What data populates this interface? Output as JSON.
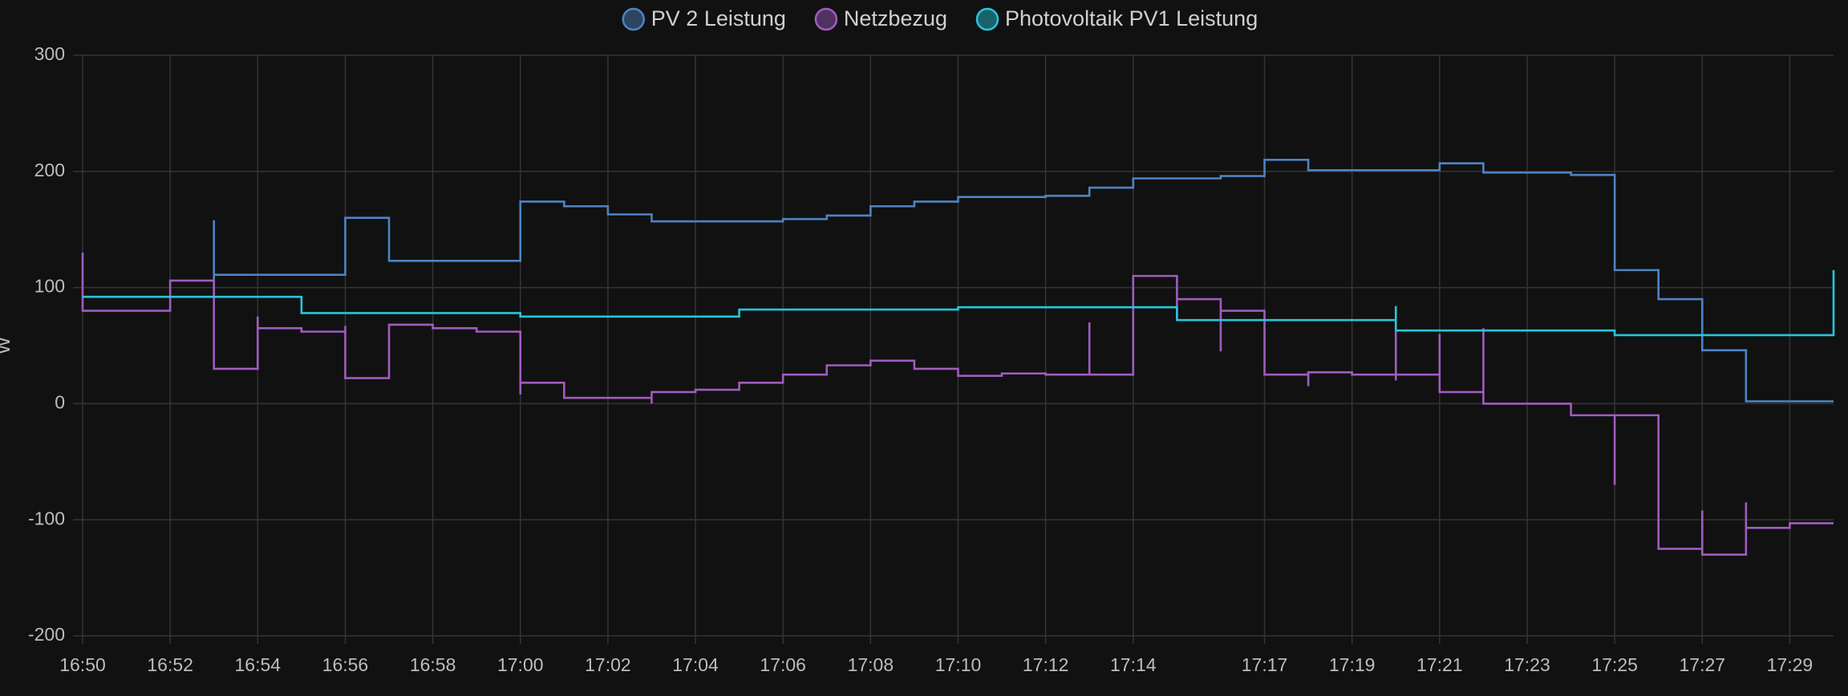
{
  "chart_data": {
    "type": "step-line",
    "y_label": "W",
    "xlim": [
      "16:50",
      "17:30"
    ],
    "xticks": [
      "16:50",
      "16:52",
      "16:54",
      "16:56",
      "16:58",
      "17:00",
      "17:02",
      "17:04",
      "17:06",
      "17:08",
      "17:10",
      "17:12",
      "17:14",
      "17:17",
      "17:19",
      "17:21",
      "17:23",
      "17:25",
      "17:27",
      "17:29"
    ],
    "ylim": [
      -200,
      300
    ],
    "yticks": [
      -200,
      -100,
      0,
      100,
      200,
      300
    ],
    "grid": true,
    "legend": "top",
    "series": [
      {
        "name": "PV 2 Leistung",
        "color": "#4d84c4",
        "x": [
          "16:50",
          "16:53",
          "16:53",
          "16:56",
          "16:57",
          "17:00",
          "17:01",
          "17:02",
          "17:03",
          "17:05",
          "17:06",
          "17:07",
          "17:08",
          "17:09",
          "17:10",
          "17:12",
          "17:13",
          "17:14",
          "17:16",
          "17:17",
          "17:18",
          "17:20",
          "17:21",
          "17:22",
          "17:24",
          "17:25",
          "17:25",
          "17:26",
          "17:26",
          "17:27",
          "17:28",
          "17:28",
          "17:30"
        ],
        "values": [
          92,
          158,
          111,
          160,
          123,
          174,
          170,
          163,
          157,
          157,
          159,
          162,
          170,
          174,
          178,
          179,
          186,
          194,
          196,
          210,
          201,
          201,
          207,
          199,
          197,
          145,
          115,
          101,
          90,
          46,
          43,
          2,
          2
        ]
      },
      {
        "name": "Netzbezug",
        "color": "#a05cbf",
        "x": [
          "16:50",
          "16:50",
          "16:52",
          "16:53",
          "16:54",
          "16:54",
          "16:55",
          "16:56",
          "16:56",
          "16:57",
          "16:57",
          "16:58",
          "16:59",
          "17:00",
          "17:00",
          "17:01",
          "17:02",
          "17:03",
          "17:03",
          "17:04",
          "17:05",
          "17:06",
          "17:07",
          "17:08",
          "17:09",
          "17:10",
          "17:11",
          "17:12",
          "17:13",
          "17:13",
          "17:13",
          "17:14",
          "17:14",
          "17:15",
          "17:15",
          "17:16",
          "17:16",
          "17:17",
          "17:18",
          "17:18",
          "17:19",
          "17:20",
          "17:20",
          "17:20",
          "17:21",
          "17:21",
          "17:22",
          "17:22",
          "17:23",
          "17:24",
          "17:25",
          "17:25",
          "17:25",
          "17:26",
          "17:26",
          "17:27",
          "17:27",
          "17:28",
          "17:28",
          "17:29",
          "17:30"
        ],
        "values": [
          130,
          80,
          106,
          30,
          75,
          65,
          62,
          67,
          22,
          55,
          68,
          65,
          62,
          8,
          18,
          5,
          5,
          0,
          10,
          12,
          18,
          25,
          33,
          37,
          30,
          24,
          26,
          25,
          45,
          70,
          25,
          60,
          110,
          75,
          90,
          45,
          80,
          25,
          15,
          27,
          25,
          20,
          70,
          25,
          60,
          10,
          65,
          0,
          0,
          -10,
          -20,
          -70,
          -10,
          -40,
          -125,
          -92,
          -130,
          -85,
          -107,
          -103,
          -103
        ]
      },
      {
        "name": "Photovoltaik PV1 Leistung",
        "color": "#26c6da",
        "x": [
          "16:50",
          "16:55",
          "17:00",
          "17:05",
          "17:10",
          "17:15",
          "17:20",
          "17:20",
          "17:25",
          "17:30"
        ],
        "values": [
          92,
          78,
          75,
          81,
          83,
          72,
          84,
          63,
          59,
          115
        ]
      }
    ]
  }
}
